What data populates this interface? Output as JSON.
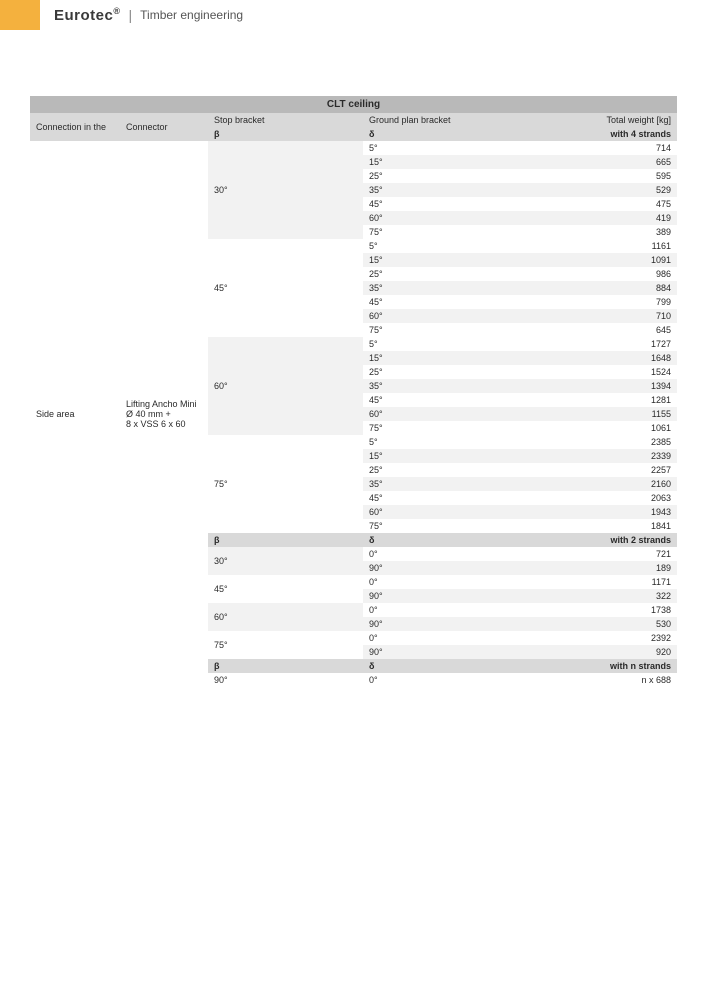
{
  "header": {
    "brand": "Eurotec",
    "reg": "®",
    "subtitle": "Timber engineering"
  },
  "table": {
    "title": "CLT ceiling",
    "columns": {
      "c1": "Connection in the",
      "c2": "Connector",
      "c3": "Stop bracket",
      "c4": "Ground plan bracket",
      "c5": "Total weight [kg]"
    },
    "greek": {
      "beta": "β",
      "delta": "δ"
    },
    "strands4": "with 4 strands",
    "strands2": "with 2 strands",
    "strandsN": "with n strands",
    "connection": "Side area",
    "connector": "Lifting Ancho Mini Ø 40 mm +\n8 x VSS 6 x 60",
    "sections4": [
      {
        "beta": "30°",
        "rows": [
          [
            "5°",
            "714"
          ],
          [
            "15°",
            "665"
          ],
          [
            "25°",
            "595"
          ],
          [
            "35°",
            "529"
          ],
          [
            "45°",
            "475"
          ],
          [
            "60°",
            "419"
          ],
          [
            "75°",
            "389"
          ]
        ],
        "shade": "light"
      },
      {
        "beta": "45°",
        "rows": [
          [
            "5°",
            "1161"
          ],
          [
            "15°",
            "1091"
          ],
          [
            "25°",
            "986"
          ],
          [
            "35°",
            "884"
          ],
          [
            "45°",
            "799"
          ],
          [
            "60°",
            "710"
          ],
          [
            "75°",
            "645"
          ]
        ],
        "shade": "white"
      },
      {
        "beta": "60°",
        "rows": [
          [
            "5°",
            "1727"
          ],
          [
            "15°",
            "1648"
          ],
          [
            "25°",
            "1524"
          ],
          [
            "35°",
            "1394"
          ],
          [
            "45°",
            "1281"
          ],
          [
            "60°",
            "1155"
          ],
          [
            "75°",
            "1061"
          ]
        ],
        "shade": "light"
      },
      {
        "beta": "75°",
        "rows": [
          [
            "5°",
            "2385"
          ],
          [
            "15°",
            "2339"
          ],
          [
            "25°",
            "2257"
          ],
          [
            "35°",
            "2160"
          ],
          [
            "45°",
            "2063"
          ],
          [
            "60°",
            "1943"
          ],
          [
            "75°",
            "1841"
          ]
        ],
        "shade": "white"
      }
    ],
    "sections2": [
      {
        "beta": "30°",
        "rows": [
          [
            "0°",
            "721"
          ],
          [
            "90°",
            "189"
          ]
        ],
        "shade": "light"
      },
      {
        "beta": "45°",
        "rows": [
          [
            "0°",
            "1171"
          ],
          [
            "90°",
            "322"
          ]
        ],
        "shade": "white"
      },
      {
        "beta": "60°",
        "rows": [
          [
            "0°",
            "1738"
          ],
          [
            "90°",
            "530"
          ]
        ],
        "shade": "light"
      },
      {
        "beta": "75°",
        "rows": [
          [
            "0°",
            "2392"
          ],
          [
            "90°",
            "920"
          ]
        ],
        "shade": "white"
      }
    ],
    "sectionN": {
      "beta": "90°",
      "delta": "0°",
      "value": "n x 688"
    }
  },
  "style": {
    "orange": "#f4b13e",
    "title_bg": "#b9b9b9",
    "header_bg": "#d9d9d9",
    "light_bg": "#f2f2f2",
    "white_bg": "#ffffff",
    "text": "#2a2a2a"
  }
}
